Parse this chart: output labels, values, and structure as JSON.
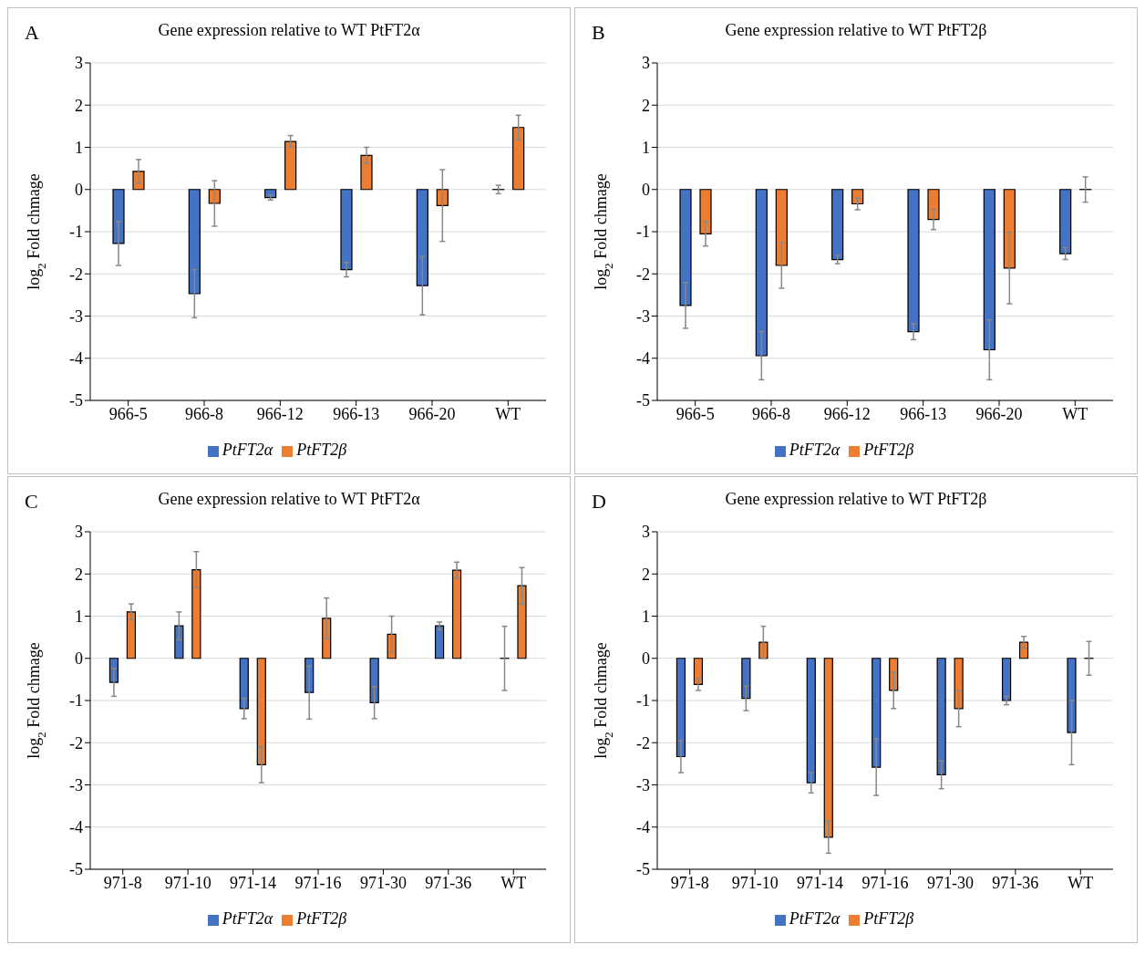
{
  "chart_data": [
    {
      "type": "bar",
      "title": "Gene expression relative to WT PtFT2α",
      "ylabel": "log$_{2}$ Fold chmage",
      "annotations": [
        "A"
      ],
      "categories": [
        "966-5",
        "966-8",
        "966-12",
        "966-13",
        "966-20",
        "WT"
      ],
      "ylim": [
        -5,
        3
      ],
      "yticks": [
        -5,
        -4,
        -3,
        -2,
        -1,
        0,
        1,
        2,
        3
      ],
      "grid": "y",
      "legend": "bottom",
      "series": [
        {
          "name": "PtFT2α",
          "color": "#4472c4",
          "values": [
            -1.28,
            -2.47,
            -0.19,
            -1.9,
            -2.28,
            0
          ],
          "errors": [
            0.52,
            0.57,
            0.06,
            0.17,
            0.69,
            0.1
          ]
        },
        {
          "name": "PtFT2β",
          "color": "#ed7d31",
          "values": [
            0.43,
            -0.33,
            1.14,
            0.81,
            -0.38,
            1.47
          ],
          "errors": [
            0.28,
            0.54,
            0.14,
            0.19,
            0.85,
            0.29
          ]
        }
      ]
    },
    {
      "type": "bar",
      "title": "Gene expression relative to WT PtFT2β",
      "ylabel": "log$_{2}$ Fold chmage",
      "annotations": [
        "B"
      ],
      "categories": [
        "966-5",
        "966-8",
        "966-12",
        "966-13",
        "966-20",
        "WT"
      ],
      "ylim": [
        -5,
        3
      ],
      "yticks": [
        -5,
        -4,
        -3,
        -2,
        -1,
        0,
        1,
        2,
        3
      ],
      "grid": "y",
      "legend": "bottom",
      "series": [
        {
          "name": "PtFT2α",
          "color": "#4472c4",
          "values": [
            -2.75,
            -3.94,
            -1.66,
            -3.37,
            -3.8,
            -1.52
          ],
          "errors": [
            0.54,
            0.57,
            0.1,
            0.19,
            0.71,
            0.14
          ]
        },
        {
          "name": "PtFT2β",
          "color": "#ed7d31",
          "values": [
            -1.05,
            -1.8,
            -0.34,
            -0.71,
            -1.86,
            0
          ],
          "errors": [
            0.29,
            0.54,
            0.14,
            0.24,
            0.85,
            0.3
          ]
        }
      ]
    },
    {
      "type": "bar",
      "title": "Gene expression relative to WT PtFT2α",
      "ylabel": "log$_{2}$ Fold chmage",
      "annotations": [
        "C"
      ],
      "categories": [
        "971-8",
        "971-10",
        "971-14",
        "971-16",
        "971-30",
        "971-36",
        "WT"
      ],
      "ylim": [
        -5,
        3
      ],
      "yticks": [
        -5,
        -4,
        -3,
        -2,
        -1,
        0,
        1,
        2,
        3
      ],
      "grid": "y",
      "legend": "bottom",
      "series": [
        {
          "name": "PtFT2α",
          "color": "#4472c4",
          "values": [
            -0.57,
            0.77,
            -1.19,
            -0.81,
            -1.05,
            0.77,
            0
          ],
          "errors": [
            0.33,
            0.33,
            0.24,
            0.63,
            0.38,
            0.09,
            0.76
          ]
        },
        {
          "name": "PtFT2β",
          "color": "#ed7d31",
          "values": [
            1.1,
            2.1,
            -2.52,
            0.95,
            0.57,
            2.09,
            1.72
          ],
          "errors": [
            0.19,
            0.43,
            0.43,
            0.48,
            0.43,
            0.19,
            0.43
          ]
        }
      ]
    },
    {
      "type": "bar",
      "title": "Gene expression relative to WT PtFT2β",
      "ylabel": "log$_{2}$ Fold chmage",
      "annotations": [
        "D"
      ],
      "categories": [
        "971-8",
        "971-10",
        "971-14",
        "971-16",
        "971-30",
        "971-36",
        "WT"
      ],
      "ylim": [
        -5,
        3
      ],
      "yticks": [
        -5,
        -4,
        -3,
        -2,
        -1,
        0,
        1,
        2,
        3
      ],
      "grid": "y",
      "legend": "bottom",
      "series": [
        {
          "name": "PtFT2α",
          "color": "#4472c4",
          "values": [
            -2.33,
            -0.95,
            -2.95,
            -2.58,
            -2.76,
            -1.0,
            -1.76
          ],
          "errors": [
            0.38,
            0.29,
            0.24,
            0.67,
            0.33,
            0.1,
            0.76
          ]
        },
        {
          "name": "PtFT2β",
          "color": "#ed7d31",
          "values": [
            -0.62,
            0.38,
            -4.24,
            -0.76,
            -1.19,
            0.38,
            0
          ],
          "errors": [
            0.14,
            0.38,
            0.38,
            0.43,
            0.43,
            0.14,
            0.4
          ]
        }
      ]
    }
  ]
}
